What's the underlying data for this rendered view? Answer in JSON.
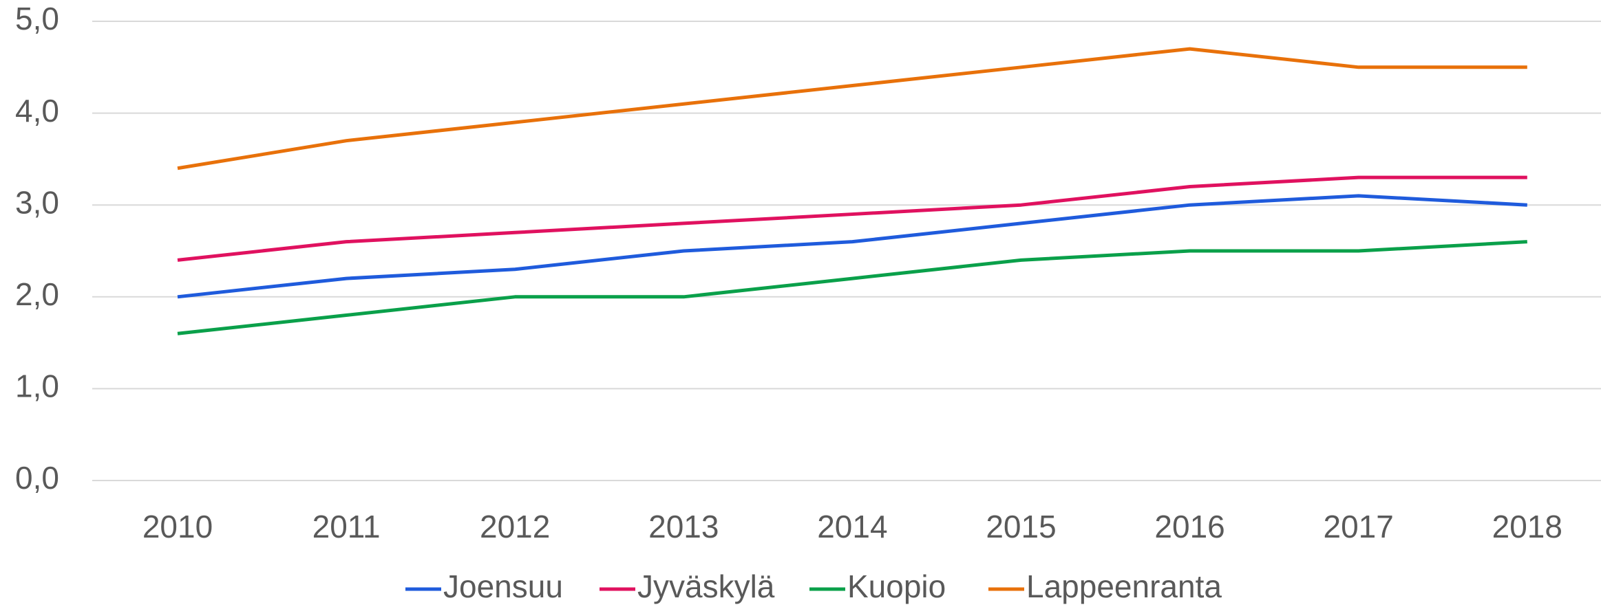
{
  "chart_data": {
    "type": "line",
    "categories": [
      "2010",
      "2011",
      "2012",
      "2013",
      "2014",
      "2015",
      "2016",
      "2017",
      "2018"
    ],
    "series": [
      {
        "name": "Joensuu",
        "color": "#1f5bdc",
        "values": [
          2.0,
          2.2,
          2.3,
          2.5,
          2.6,
          2.8,
          3.0,
          3.1,
          3.0
        ]
      },
      {
        "name": "Jyväskylä",
        "color": "#e0115f",
        "values": [
          2.4,
          2.6,
          2.7,
          2.8,
          2.9,
          3.0,
          3.2,
          3.3,
          3.3
        ]
      },
      {
        "name": "Kuopio",
        "color": "#0aa04a",
        "values": [
          1.6,
          1.8,
          2.0,
          2.0,
          2.2,
          2.4,
          2.5,
          2.5,
          2.6
        ]
      },
      {
        "name": "Lappeenranta",
        "color": "#e8710a",
        "values": [
          3.4,
          3.7,
          3.9,
          4.1,
          4.3,
          4.5,
          4.7,
          4.5,
          4.5
        ]
      }
    ],
    "ylim": [
      0,
      5
    ],
    "yticks": [
      {
        "value": 0,
        "label": "0,0"
      },
      {
        "value": 1,
        "label": "1,0"
      },
      {
        "value": 2,
        "label": "2,0"
      },
      {
        "value": 3,
        "label": "3,0"
      },
      {
        "value": 4,
        "label": "4,0"
      },
      {
        "value": 5,
        "label": "5,0"
      }
    ],
    "grid": true,
    "legend": "bottom"
  }
}
